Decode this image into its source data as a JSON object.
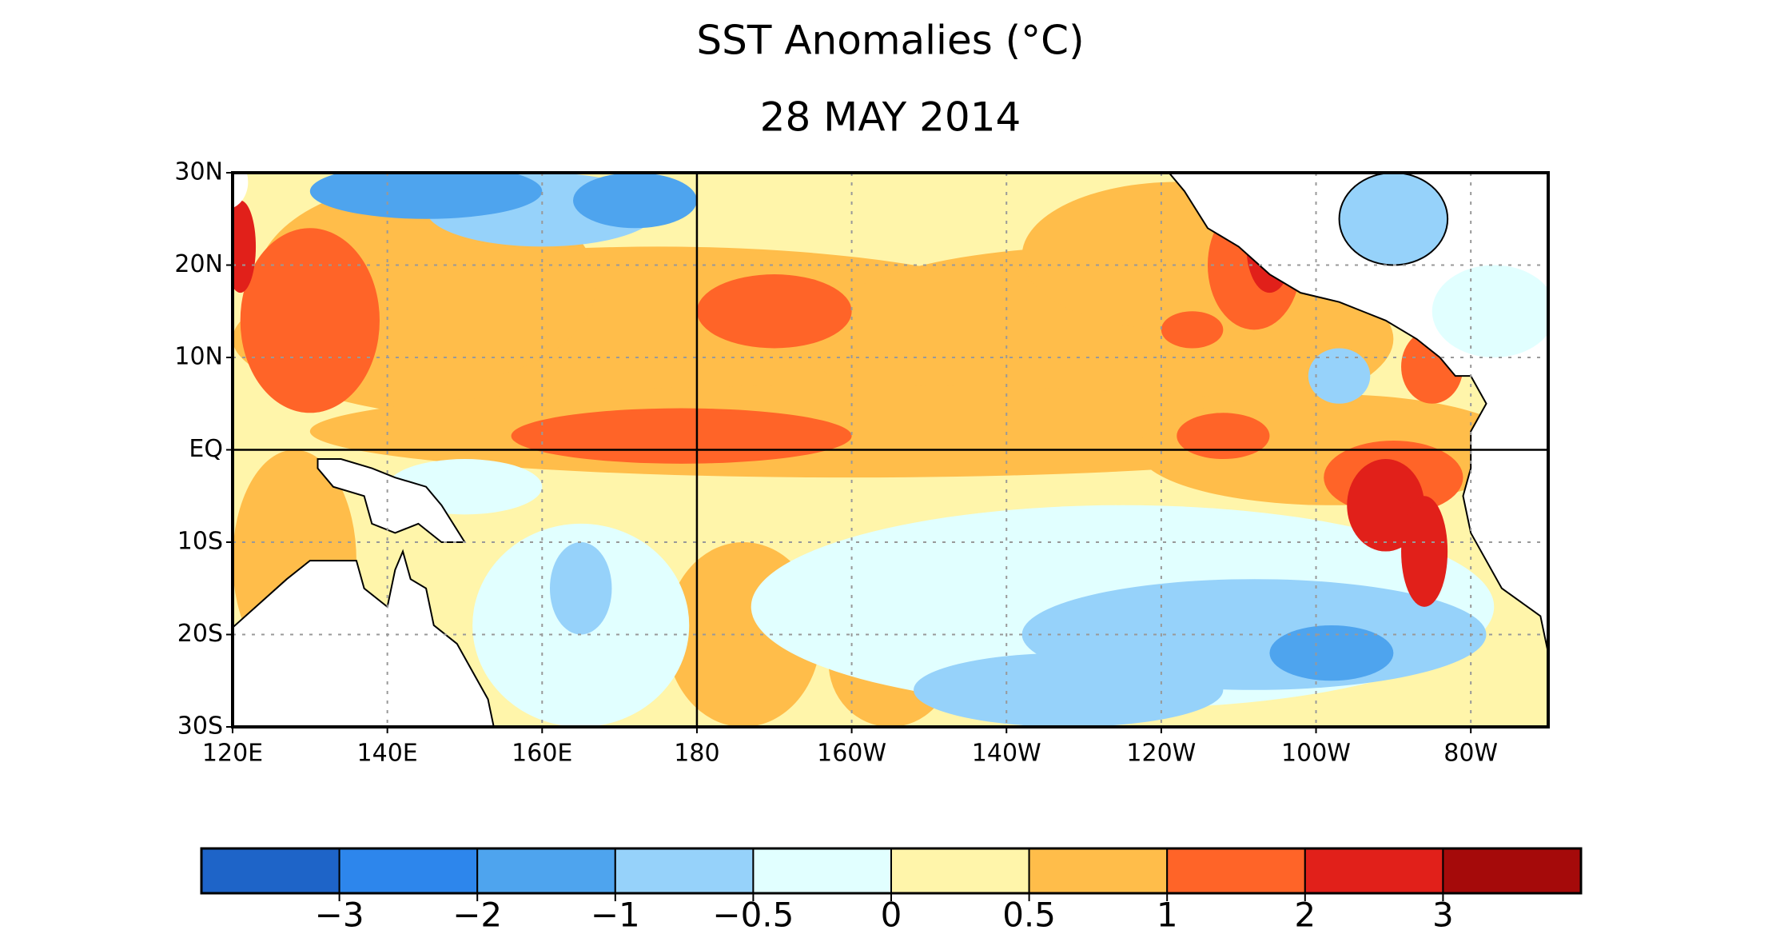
{
  "title": "SST Anomalies (°C)",
  "subtitle": "28 MAY 2014",
  "map": {
    "xlim": [
      120,
      290
    ],
    "ylim": [
      -30,
      30
    ],
    "xticks": [
      {
        "value": 120,
        "label": "120E"
      },
      {
        "value": 140,
        "label": "140E"
      },
      {
        "value": 160,
        "label": "160E"
      },
      {
        "value": 180,
        "label": "180"
      },
      {
        "value": 200,
        "label": "160W"
      },
      {
        "value": 220,
        "label": "140W"
      },
      {
        "value": 240,
        "label": "120W"
      },
      {
        "value": 260,
        "label": "100W"
      },
      {
        "value": 280,
        "label": "80W"
      }
    ],
    "yticks": [
      {
        "value": 30,
        "label": "30N"
      },
      {
        "value": 20,
        "label": "20N"
      },
      {
        "value": 10,
        "label": "10N"
      },
      {
        "value": 0,
        "label": "EQ"
      },
      {
        "value": -10,
        "label": "10S"
      },
      {
        "value": -20,
        "label": "20S"
      },
      {
        "value": -30,
        "label": "30S"
      }
    ],
    "grid": "dotted",
    "reference_lines": [
      {
        "axis": "x",
        "value": 180
      },
      {
        "axis": "y",
        "value": 0
      }
    ]
  },
  "colorbar": {
    "colors": [
      "#1e64c8",
      "#2d86ec",
      "#4ea4ee",
      "#96d2fa",
      "#e1ffff",
      "#fff5aa",
      "#ffbd4a",
      "#ff6428",
      "#e1201a",
      "#a50a0a"
    ],
    "ticks": [
      {
        "value": -3,
        "label": "−3"
      },
      {
        "value": -2,
        "label": "−2"
      },
      {
        "value": -1,
        "label": "−1"
      },
      {
        "value": -0.5,
        "label": "−0.5"
      },
      0,
      0.5,
      1,
      2,
      3
    ]
  }
}
